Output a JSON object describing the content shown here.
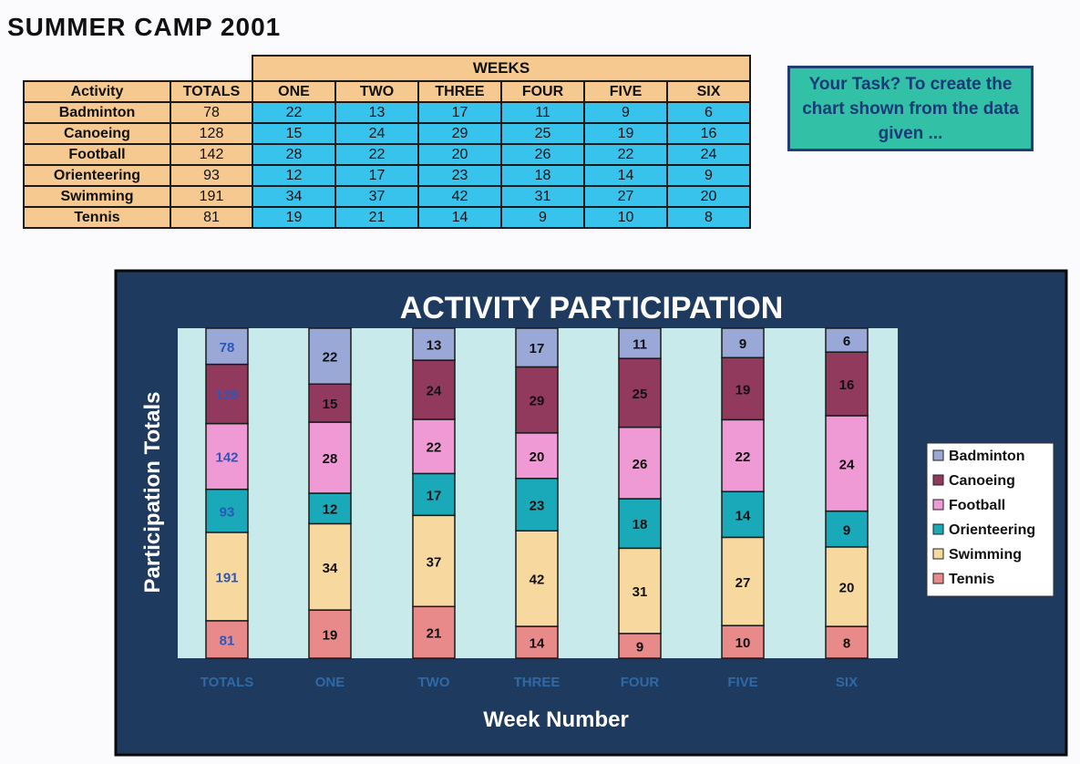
{
  "page": {
    "title": "SUMMER  CAMP  2001",
    "task_text": "Your Task? To create the chart shown from the data given ..."
  },
  "table": {
    "group_header": "WEEKS",
    "columns": [
      "Activity",
      "TOTALS",
      "ONE",
      "TWO",
      "THREE",
      "FOUR",
      "FIVE",
      "SIX"
    ],
    "rows": [
      {
        "activity": "Badminton",
        "values": [
          "78",
          "22",
          "13",
          "17",
          "11",
          "9",
          "6"
        ]
      },
      {
        "activity": "Canoeing",
        "values": [
          "128",
          "15",
          "24",
          "29",
          "25",
          "19",
          "16"
        ]
      },
      {
        "activity": "Football",
        "values": [
          "142",
          "28",
          "22",
          "20",
          "26",
          "22",
          "24"
        ]
      },
      {
        "activity": "Orienteering",
        "values": [
          "93",
          "12",
          "17",
          "23",
          "18",
          "14",
          "9"
        ]
      },
      {
        "activity": "Swimming",
        "values": [
          "191",
          "34",
          "37",
          "42",
          "31",
          "27",
          "20"
        ]
      },
      {
        "activity": "Tennis",
        "values": [
          "81",
          "19",
          "21",
          "14",
          "9",
          "10",
          "8"
        ]
      }
    ]
  },
  "chart_data": {
    "type": "bar",
    "stacked": "100% per column",
    "title": "ACTIVITY PARTICIPATION",
    "xlabel": "Week Number",
    "ylabel": "Participation Totals",
    "categories": [
      "TOTALS",
      "ONE",
      "TWO",
      "THREE",
      "FOUR",
      "FIVE",
      "SIX"
    ],
    "series": [
      {
        "name": "Tennis",
        "color": "#e88a8a",
        "values": [
          81,
          19,
          21,
          14,
          9,
          10,
          8
        ]
      },
      {
        "name": "Swimming",
        "color": "#f7d9a0",
        "values": [
          191,
          34,
          37,
          42,
          31,
          27,
          20
        ]
      },
      {
        "name": "Orienteering",
        "color": "#19a9b9",
        "values": [
          93,
          12,
          17,
          23,
          18,
          14,
          9
        ]
      },
      {
        "name": "Football",
        "color": "#ef9ad4",
        "values": [
          142,
          28,
          22,
          20,
          26,
          22,
          24
        ]
      },
      {
        "name": "Canoeing",
        "color": "#923a5e",
        "values": [
          128,
          15,
          24,
          29,
          25,
          19,
          16
        ]
      },
      {
        "name": "Badminton",
        "color": "#9aa8d8",
        "values": [
          78,
          22,
          13,
          17,
          11,
          9,
          6
        ]
      }
    ],
    "legend_order": [
      "Badminton",
      "Canoeing",
      "Football",
      "Orienteering",
      "Swimming",
      "Tennis"
    ],
    "legend_position": "right",
    "colors": {
      "background": "#1f3a5f",
      "plot_area": "#c9eaea",
      "title": "#ffffff",
      "category_labels": "#2f69a6",
      "totals_value_labels": "#2e56b8",
      "value_labels": "#111111"
    }
  }
}
